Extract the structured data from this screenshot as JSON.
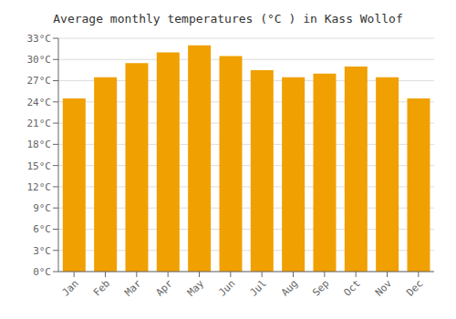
{
  "chart_data": {
    "type": "bar",
    "title": "Average monthly temperatures (°C ) in Kass Wollof",
    "categories": [
      "Jan",
      "Feb",
      "Mar",
      "Apr",
      "May",
      "Jun",
      "Jul",
      "Aug",
      "Sep",
      "Oct",
      "Nov",
      "Dec"
    ],
    "values": [
      24.5,
      27.5,
      29.5,
      31.0,
      32.0,
      30.5,
      28.5,
      27.5,
      28.0,
      29.0,
      27.5,
      24.5
    ],
    "color": "#F0A000",
    "ylim": [
      0,
      33
    ],
    "yticks": [
      {
        "value": 0,
        "label": "0°C"
      },
      {
        "value": 3,
        "label": "3°C"
      },
      {
        "value": 6,
        "label": "6°C"
      },
      {
        "value": 9,
        "label": "9°C"
      },
      {
        "value": 12,
        "label": "12°C"
      },
      {
        "value": 15,
        "label": "15°C"
      },
      {
        "value": 18,
        "label": "18°C"
      },
      {
        "value": 21,
        "label": "21°C"
      },
      {
        "value": 24,
        "label": "24°C"
      },
      {
        "value": 27,
        "label": "27°C"
      },
      {
        "value": 30,
        "label": "30°C"
      },
      {
        "value": 33,
        "label": "33°C"
      }
    ],
    "grid": true
  }
}
